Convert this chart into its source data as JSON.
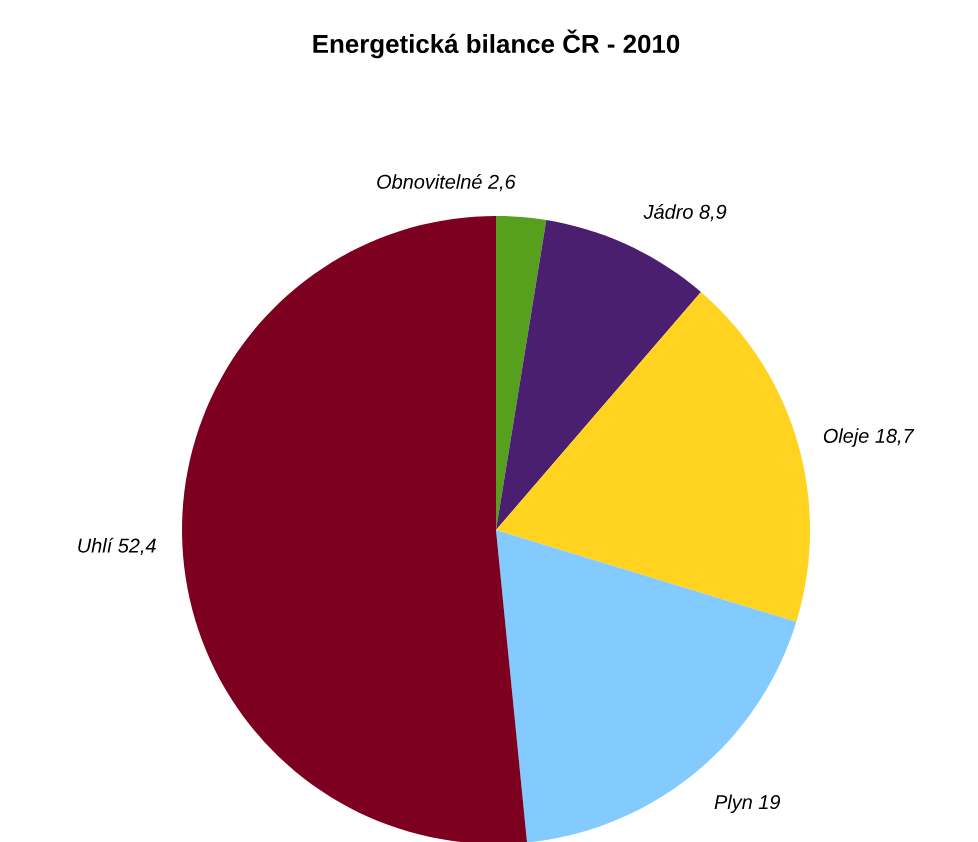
{
  "chart_data": {
    "type": "pie",
    "title": "Energetická bilance ČR - 2010",
    "categories": [
      "Obnovitelné",
      "Jádro",
      "Oleje",
      "Plyn",
      "Uhlí"
    ],
    "values": [
      2.6,
      8.9,
      18.7,
      19,
      52.4
    ],
    "value_labels": [
      "2,6",
      "8,9",
      "18,7",
      "19",
      "52,4"
    ],
    "colors": [
      "#56a01e",
      "#4b1f6f",
      "#ffd320",
      "#83caff",
      "#7e0021"
    ]
  }
}
